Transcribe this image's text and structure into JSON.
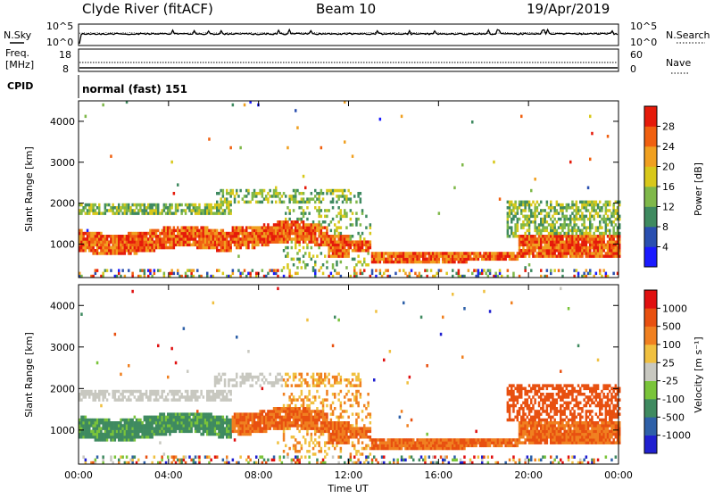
{
  "header": {
    "title": "Clyde River (fitACF)",
    "beam": "Beam 10",
    "date": "19/Apr/2019"
  },
  "noise_panel": {
    "left_label": "N.Sky",
    "right_label": "N.Search",
    "left_ticks": [
      "10^5",
      "10^0"
    ],
    "right_ticks": [
      "10^5",
      "10^0"
    ]
  },
  "freq_panel": {
    "left_label_1": "Freq.",
    "left_label_2": "[MHz]",
    "right_label": "Nave",
    "left_ticks": [
      "18",
      "8"
    ],
    "right_ticks": [
      "60",
      "0"
    ]
  },
  "cpid_panel": {
    "label": "CPID",
    "value": "normal (fast) 151"
  },
  "chart_data": [
    {
      "type": "heatmap",
      "name": "power",
      "ylabel": "Slant Range [km]",
      "ylim": [
        180,
        4500
      ],
      "yticks": [
        "1000",
        "2000",
        "3000",
        "4000"
      ],
      "colorbar_label": "Power [dB]",
      "colorbar_ticks": [
        "4",
        "8",
        "12",
        "16",
        "20",
        "24",
        "28"
      ],
      "colors": [
        "#1a1aff",
        "#2a4fb0",
        "#3f8a60",
        "#7fb84a",
        "#d8c81a",
        "#f0a020",
        "#f06010",
        "#e51a0a"
      ]
    },
    {
      "type": "heatmap",
      "name": "velocity",
      "ylabel": "Slant Range [km]",
      "ylim": [
        180,
        4500
      ],
      "yticks": [
        "1000",
        "2000",
        "3000",
        "4000"
      ],
      "colorbar_label": "Velocity [m s⁻¹]",
      "colorbar_ticks": [
        "1000",
        "500",
        "100",
        "25",
        "-25",
        "-100",
        "-500",
        "-1000"
      ],
      "colors": [
        "#2020d0",
        "#2e60a8",
        "#3f8a60",
        "#7ac43a",
        "#c8c8c0",
        "#f0c040",
        "#f08020",
        "#e85010",
        "#e01010"
      ]
    }
  ],
  "xaxis": {
    "label": "Time UT",
    "ticks": [
      "00:00",
      "04:00",
      "08:00",
      "12:00",
      "16:00",
      "20:00",
      "00:00"
    ]
  }
}
